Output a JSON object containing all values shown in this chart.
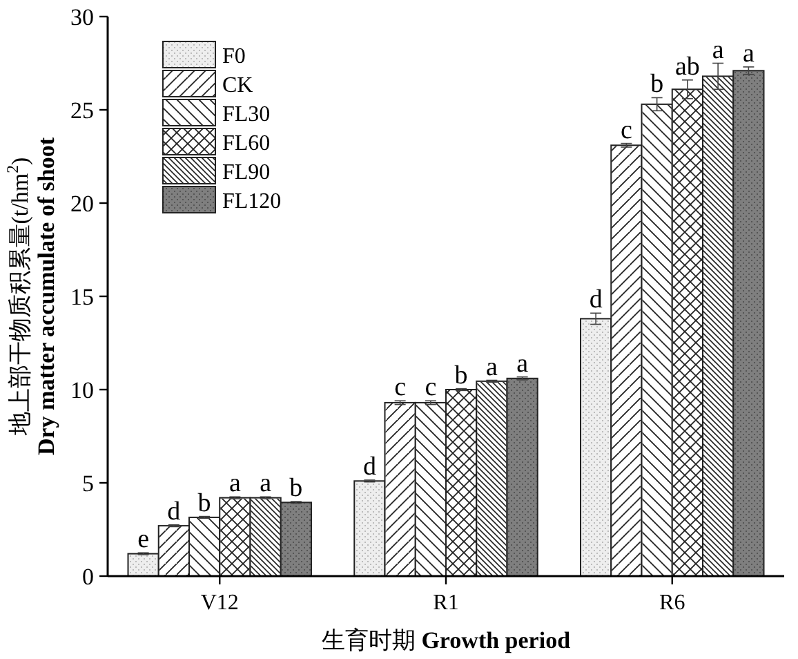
{
  "chart_data": {
    "type": "bar",
    "categories": [
      "V12",
      "R1",
      "R6"
    ],
    "xlabel": "生育时期 Growth period",
    "ylabel": "地上部干物质积累量(t/hm$^{2}$)\nDry matter accumulate of shoot",
    "ylim": [
      0,
      30
    ],
    "yticks": [
      0,
      5,
      10,
      15,
      20,
      25,
      30
    ],
    "legend": "top left",
    "grid": false,
    "series": [
      {
        "name": "F0",
        "color": "#eeeeee",
        "values": [
          1.2,
          5.1,
          13.8
        ],
        "errors": [
          0.05,
          0.05,
          0.3
        ],
        "value_labels": [
          "e",
          "d",
          "d"
        ]
      },
      {
        "name": "CK",
        "color": "#ffffff",
        "values": [
          2.7,
          9.3,
          23.1
        ],
        "errors": [
          0.05,
          0.1,
          0.1
        ],
        "value_labels": [
          "d",
          "c",
          "c"
        ]
      },
      {
        "name": "FL30",
        "color": "#ffffff",
        "values": [
          3.15,
          9.3,
          25.3
        ],
        "errors": [
          0.05,
          0.1,
          0.35
        ],
        "value_labels": [
          "b",
          "c",
          "b"
        ]
      },
      {
        "name": "FL60",
        "color": "#ffffff",
        "values": [
          4.2,
          10.0,
          26.1
        ],
        "errors": [
          0.05,
          0.05,
          0.5
        ],
        "value_labels": [
          "a",
          "b",
          "ab"
        ]
      },
      {
        "name": "FL90",
        "color": "#ffffff",
        "values": [
          4.2,
          10.45,
          26.8
        ],
        "errors": [
          0.05,
          0.05,
          0.7
        ],
        "value_labels": [
          "a",
          "a",
          "a"
        ]
      },
      {
        "name": "FL120",
        "color": "#7f7f7f",
        "values": [
          3.95,
          10.6,
          27.1
        ],
        "errors": [
          0.05,
          0.08,
          0.2
        ],
        "value_labels": [
          "b",
          "a",
          "a"
        ]
      }
    ]
  }
}
